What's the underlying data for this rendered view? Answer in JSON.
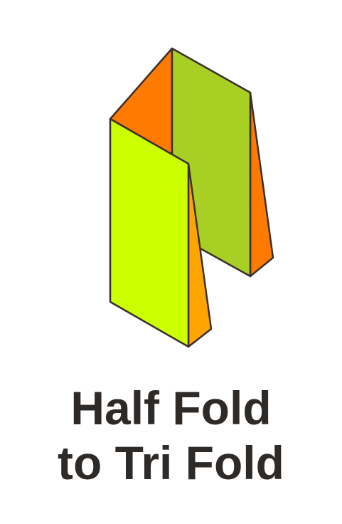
{
  "caption": {
    "line1": "Half Fold",
    "line2": "to Tri Fold"
  },
  "colors": {
    "outline": "#3a2e2a",
    "panel_front": "#ccff00",
    "panel_back": "#a8cf24",
    "flap_top": "#ff7a00",
    "flap_right": "#ff7a00",
    "flap_inner": "#ffa500",
    "text": "#2d2a28"
  }
}
